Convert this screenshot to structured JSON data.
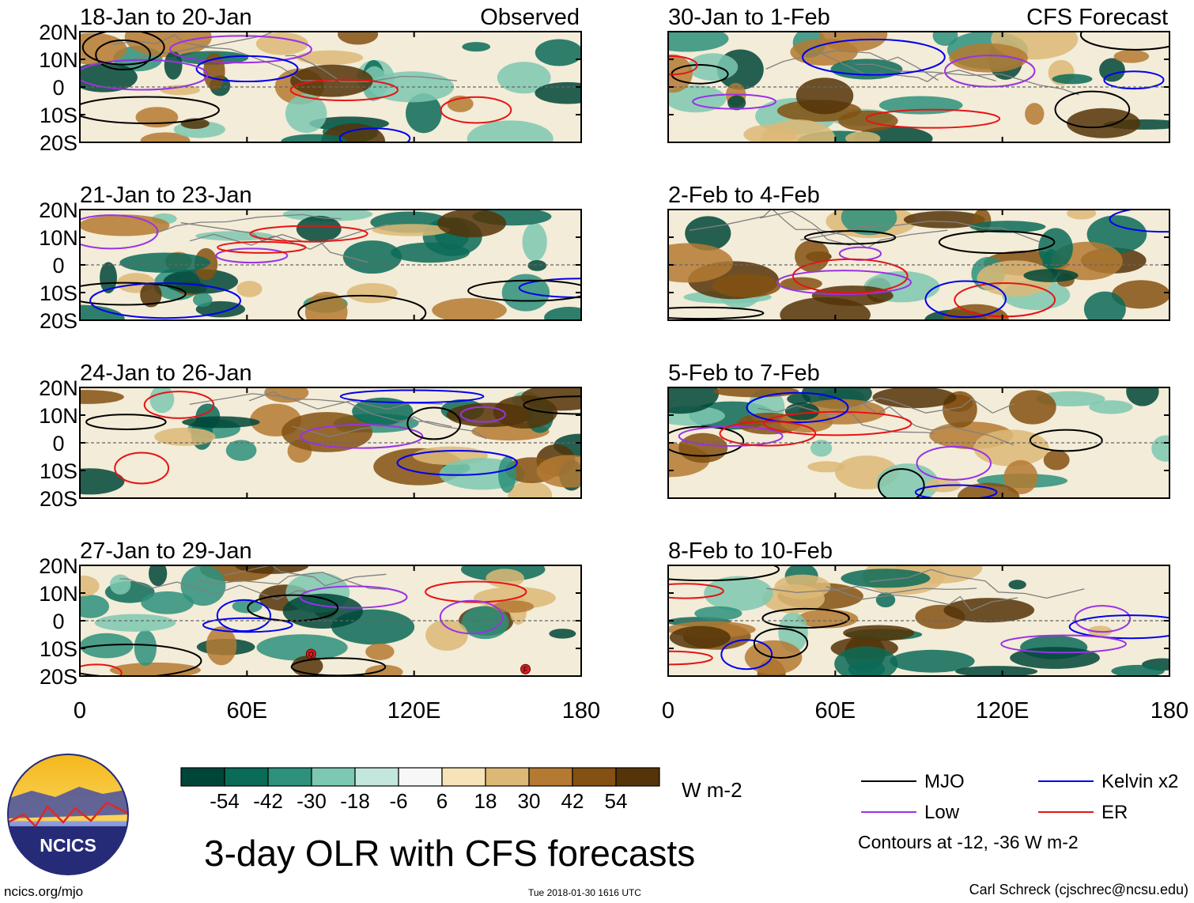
{
  "figure": {
    "title": "3-day OLR with CFS forecasts",
    "website": "ncics.org/mjo",
    "timestamp": "Tue 2018-01-30 1616 UTC",
    "author": "Carl Schreck (cjschrec@ncsu.edu)",
    "logo_text": "NCICS",
    "units": "W m-2",
    "contour_note": "Contours at -12, -36 W m-2"
  },
  "chart_data": {
    "type": "heatmap",
    "variable": "OLR anomaly",
    "columns": [
      {
        "header": "Observed",
        "panels": [
          {
            "period": "18-Jan to 20-Jan",
            "corner_label": "Observed"
          },
          {
            "period": "21-Jan to 23-Jan",
            "corner_label": ""
          },
          {
            "period": "24-Jan to 26-Jan",
            "corner_label": ""
          },
          {
            "period": "27-Jan to 29-Jan",
            "corner_label": ""
          }
        ]
      },
      {
        "header": "CFS Forecast",
        "panels": [
          {
            "period": "30-Jan to 1-Feb",
            "corner_label": "CFS Forecast"
          },
          {
            "period": "2-Feb to 4-Feb",
            "corner_label": ""
          },
          {
            "period": "5-Feb to 7-Feb",
            "corner_label": ""
          },
          {
            "period": "8-Feb to 10-Feb",
            "corner_label": ""
          }
        ]
      }
    ],
    "y_axis": {
      "range": [
        -20,
        20
      ],
      "ticks": [
        20,
        10,
        0,
        -10,
        -20
      ],
      "tick_labels": [
        "20N",
        "10N",
        "0",
        "10S",
        "20S"
      ]
    },
    "x_axis": {
      "range": [
        0,
        180
      ],
      "ticks": [
        0,
        60,
        120,
        180
      ],
      "tick_labels": [
        "0",
        "60E",
        "120E",
        "180"
      ]
    },
    "colorbar": {
      "labels": [
        "-54",
        "-42",
        "-30",
        "-18",
        "-6",
        "6",
        "18",
        "30",
        "42",
        "54"
      ],
      "colors": [
        "#004638",
        "#0a6b58",
        "#2d917b",
        "#7cc8b2",
        "#c3e7dc",
        "#f7f7f7",
        "#f6e3b8",
        "#dcb877",
        "#b47a32",
        "#845112",
        "#543408"
      ]
    },
    "legend": [
      {
        "label": "MJO",
        "color": "#000000"
      },
      {
        "label": "Kelvin x2",
        "color": "#0000ee"
      },
      {
        "label": "Low",
        "color": "#9a32e6"
      },
      {
        "label": "ER",
        "color": "#e61414"
      }
    ],
    "tc_markers": [
      "Q",
      "F"
    ]
  }
}
